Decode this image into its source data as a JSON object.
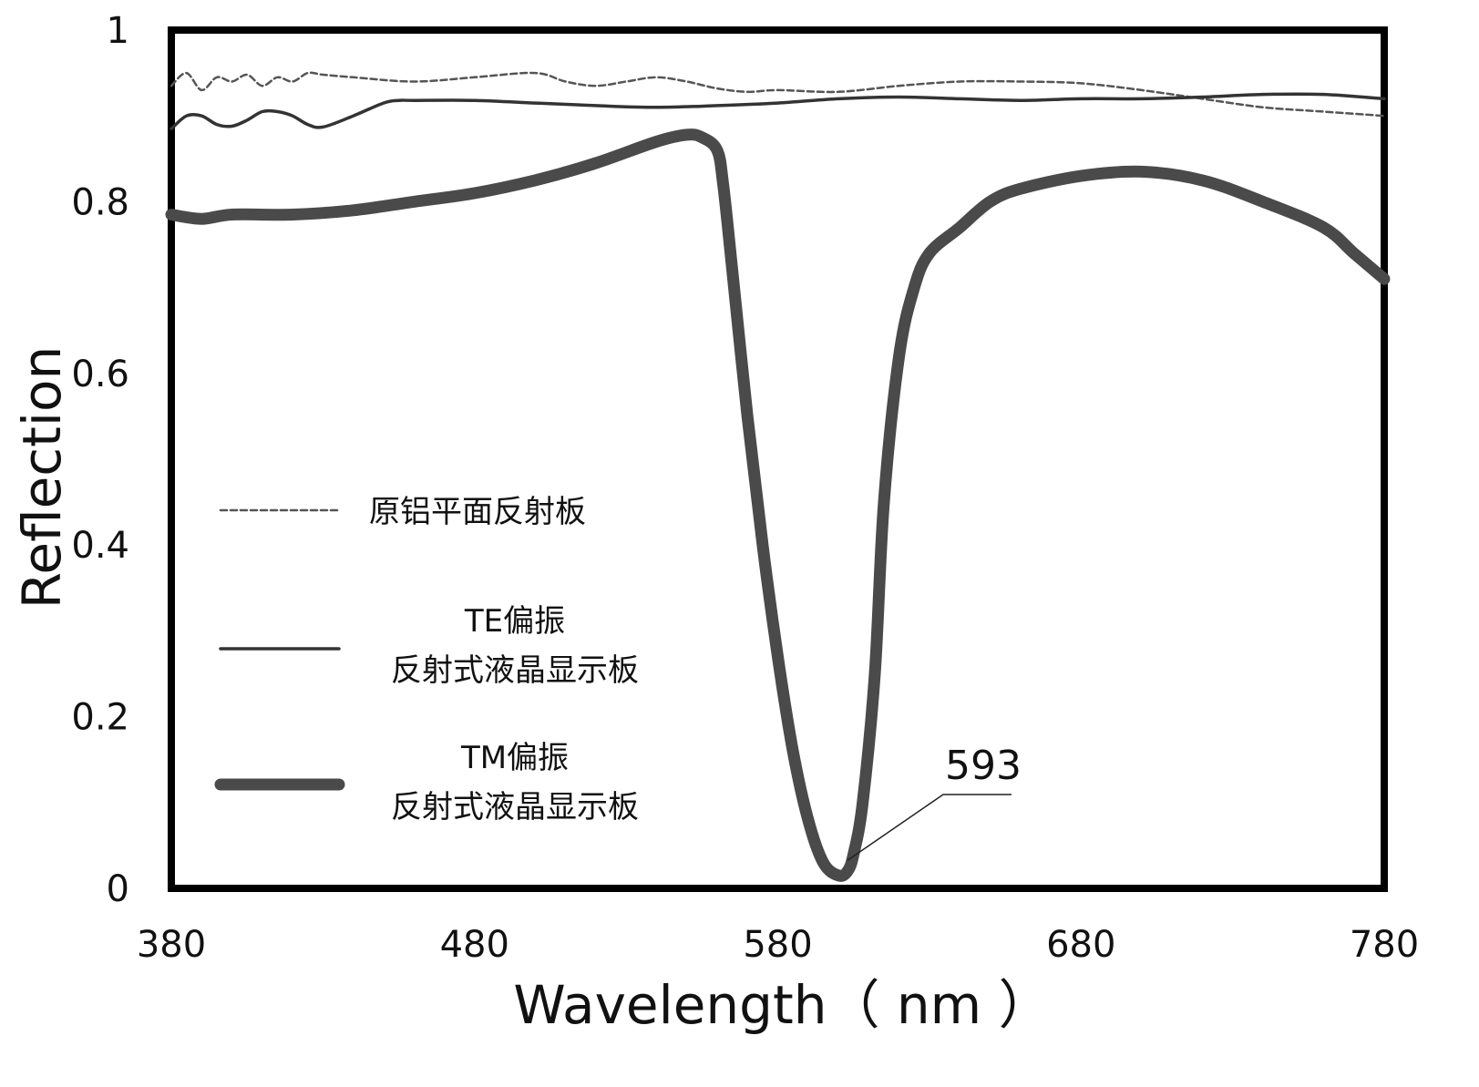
{
  "chart_data": {
    "type": "line",
    "xlabel": "Wavelength（ nm ）",
    "ylabel": "Reflection",
    "xlim": [
      380,
      780
    ],
    "ylim": [
      0,
      1
    ],
    "x_ticks": [
      "380",
      "480",
      "580",
      "680",
      "780"
    ],
    "y_ticks": [
      "0",
      "0.2",
      "0.4",
      "0.6",
      "0.8",
      "1"
    ],
    "grid": false,
    "legend": {
      "placement": "middle-left",
      "entries": [
        {
          "lines": [
            "原铝平面反射板"
          ],
          "series_index": 0
        },
        {
          "lines": [
            "TE偏振",
            "反射式液晶显示板"
          ],
          "series_index": 1
        },
        {
          "lines": [
            "TM偏振",
            "反射式液晶显示板"
          ],
          "series_index": 2
        }
      ]
    },
    "series": [
      {
        "style": "dashed-thin",
        "color": "#555555",
        "x": [
          380,
          385,
          390,
          395,
          400,
          405,
          410,
          415,
          420,
          425,
          430,
          440,
          460,
          480,
          500,
          510,
          520,
          530,
          540,
          550,
          560,
          570,
          580,
          600,
          620,
          640,
          660,
          680,
          700,
          720,
          740,
          760,
          780
        ],
        "y": [
          0.935,
          0.95,
          0.93,
          0.945,
          0.94,
          0.948,
          0.935,
          0.945,
          0.94,
          0.95,
          0.948,
          0.945,
          0.94,
          0.945,
          0.95,
          0.94,
          0.935,
          0.94,
          0.945,
          0.94,
          0.932,
          0.928,
          0.93,
          0.928,
          0.935,
          0.94,
          0.94,
          0.938,
          0.93,
          0.92,
          0.91,
          0.905,
          0.9
        ]
      },
      {
        "style": "solid-thin",
        "color": "#333333",
        "x": [
          380,
          385,
          390,
          395,
          400,
          405,
          410,
          415,
          420,
          425,
          430,
          440,
          450,
          455,
          460,
          480,
          500,
          520,
          540,
          560,
          580,
          600,
          620,
          640,
          660,
          680,
          700,
          720,
          740,
          760,
          780
        ],
        "y": [
          0.885,
          0.9,
          0.9,
          0.89,
          0.888,
          0.895,
          0.905,
          0.905,
          0.9,
          0.89,
          0.887,
          0.9,
          0.915,
          0.918,
          0.918,
          0.918,
          0.915,
          0.912,
          0.91,
          0.912,
          0.915,
          0.92,
          0.922,
          0.92,
          0.918,
          0.92,
          0.92,
          0.922,
          0.925,
          0.925,
          0.92
        ]
      },
      {
        "style": "solid-thick",
        "color": "#4a4a4a",
        "x": [
          380,
          390,
          400,
          420,
          440,
          460,
          480,
          500,
          520,
          540,
          550,
          555,
          560,
          562,
          565,
          570,
          575,
          580,
          585,
          590,
          595,
          600,
          603,
          605,
          608,
          612,
          615,
          620,
          625,
          630,
          640,
          650,
          660,
          680,
          700,
          720,
          740,
          760,
          770,
          780
        ],
        "y": [
          0.785,
          0.78,
          0.785,
          0.785,
          0.79,
          0.8,
          0.81,
          0.825,
          0.845,
          0.87,
          0.878,
          0.875,
          0.86,
          0.82,
          0.72,
          0.55,
          0.4,
          0.27,
          0.16,
          0.08,
          0.03,
          0.015,
          0.02,
          0.04,
          0.1,
          0.25,
          0.45,
          0.62,
          0.7,
          0.74,
          0.77,
          0.8,
          0.815,
          0.83,
          0.835,
          0.825,
          0.8,
          0.77,
          0.74,
          0.71
        ]
      }
    ],
    "annotations": [
      {
        "text": "593",
        "x": 603,
        "y": 0.02
      }
    ]
  }
}
